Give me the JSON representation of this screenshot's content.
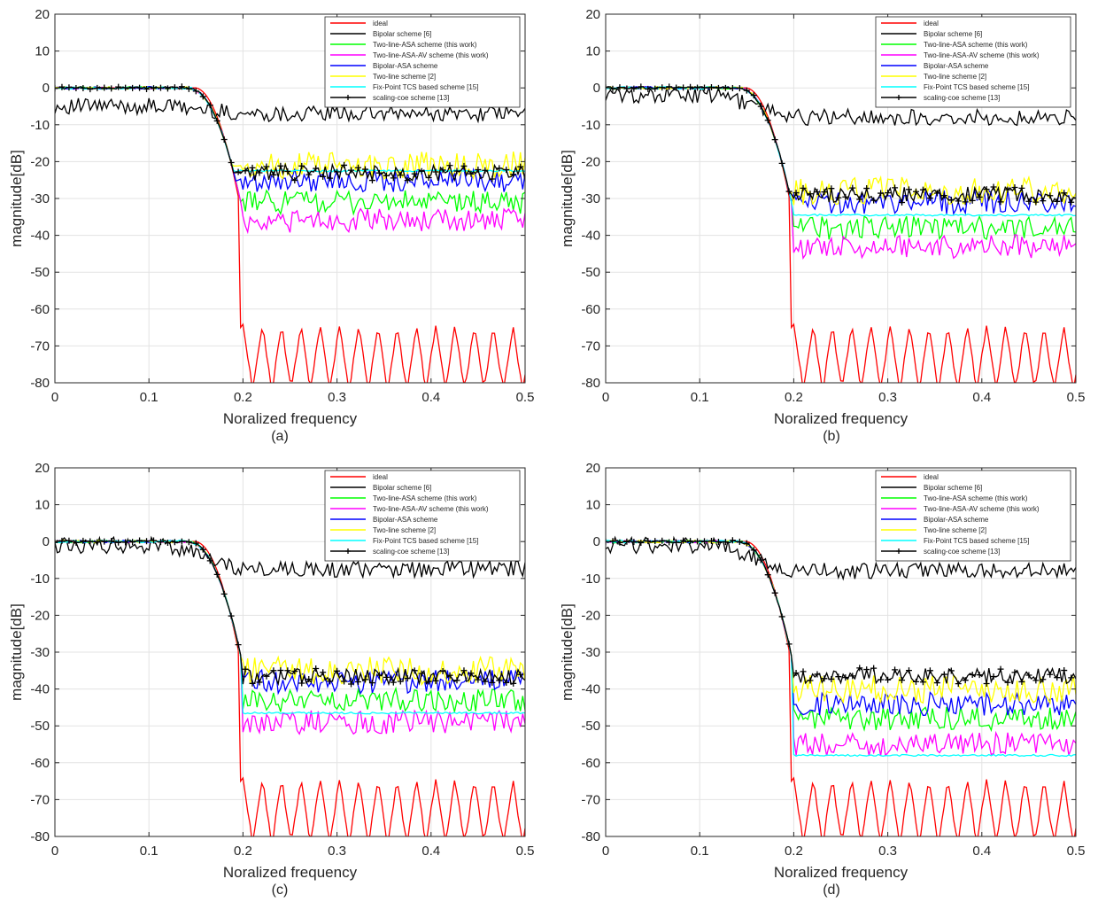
{
  "figure": {
    "captions": [
      "(a)",
      "(b)",
      "(c)",
      "(d)"
    ],
    "xlabel": "Noralized frequency",
    "ylabel": "magnitude[dB]"
  },
  "colors": {
    "ideal": "#ff0000",
    "bipolar": "#000000",
    "two_line_asa": "#00ff00",
    "two_line_asa_av": "#ff00ff",
    "bipolar_asa": "#0000ff",
    "two_line": "#ffff00",
    "fix_point_tcs": "#00ffff",
    "scaling_coe": "#000000"
  },
  "legend_entries": [
    "ideal",
    "Bipolar scheme [6]",
    "Two-line-ASA scheme (this work)",
    "Two-line-ASA-AV scheme (this work)",
    "Bipolar-ASA scheme",
    "Two-line scheme [2]",
    "Fix-Point TCS based scheme [15]",
    "scaling-coe scheme [13]"
  ],
  "chart_data": [
    {
      "type": "line",
      "panel": "(a)",
      "xlabel": "Noralized frequency",
      "ylabel": "magnitude[dB]",
      "xlim": [
        0,
        0.5
      ],
      "ylim": [
        -80,
        20
      ],
      "xticks": [
        "0",
        "0.1",
        "0.2",
        "0.3",
        "0.4",
        "0.5"
      ],
      "yticks": [
        "20",
        "10",
        "0",
        "-10",
        "-20",
        "-30",
        "-40",
        "-50",
        "-60",
        "-70",
        "-80"
      ],
      "grid": true,
      "legend": "top-right",
      "series": [
        {
          "name": "ideal",
          "passband_db": 0,
          "transition_start": 0.15,
          "cutoff": 0.2,
          "stopband_peak_db": -65,
          "stopband_null_db": -80
        },
        {
          "name": "Bipolar scheme [6]",
          "passband_db": -5,
          "stopband_db": -7
        },
        {
          "name": "Two-line-ASA scheme (this work)",
          "passband_db": 0,
          "stopband_db": -31
        },
        {
          "name": "Two-line-ASA-AV scheme (this work)",
          "passband_db": 0,
          "stopband_db": -36
        },
        {
          "name": "Bipolar-ASA scheme",
          "passband_db": 0,
          "stopband_db": -25
        },
        {
          "name": "Two-line scheme [2]",
          "passband_db": 0,
          "stopband_db": -21
        },
        {
          "name": "Fix-Point TCS based scheme [15]",
          "passband_db": 0,
          "stopband_db": -22.5
        },
        {
          "name": "scaling-coe scheme [13]",
          "passband_db": 0,
          "stopband_db": -23
        }
      ]
    },
    {
      "type": "line",
      "panel": "(b)",
      "xlabel": "Noralized frequency",
      "ylabel": "magnitude[dB]",
      "xlim": [
        0,
        0.5
      ],
      "ylim": [
        -80,
        20
      ],
      "xticks": [
        "0",
        "0.1",
        "0.2",
        "0.3",
        "0.4",
        "0.5"
      ],
      "yticks": [
        "20",
        "10",
        "0",
        "-10",
        "-20",
        "-30",
        "-40",
        "-50",
        "-60",
        "-70",
        "-80"
      ],
      "grid": true,
      "legend": "top-right",
      "series": [
        {
          "name": "ideal",
          "passband_db": 0,
          "transition_start": 0.15,
          "cutoff": 0.2,
          "stopband_peak_db": -65,
          "stopband_null_db": -80
        },
        {
          "name": "Bipolar scheme [6]",
          "passband_db": -2,
          "stopband_db": -8
        },
        {
          "name": "Two-line-ASA scheme (this work)",
          "passband_db": 0,
          "stopband_db": -38
        },
        {
          "name": "Two-line-ASA-AV scheme (this work)",
          "passband_db": 0,
          "stopband_db": -43
        },
        {
          "name": "Bipolar-ASA scheme",
          "passband_db": 0,
          "stopband_db": -31
        },
        {
          "name": "Two-line scheme [2]",
          "passband_db": 0,
          "stopband_db": -28
        },
        {
          "name": "Fix-Point TCS based scheme [15]",
          "passband_db": 0,
          "stopband_db": -34.5
        },
        {
          "name": "scaling-coe scheme [13]",
          "passband_db": 0,
          "stopband_db": -29
        }
      ]
    },
    {
      "type": "line",
      "panel": "(c)",
      "xlabel": "Noralized frequency",
      "ylabel": "magnitude[dB]",
      "xlim": [
        0,
        0.5
      ],
      "ylim": [
        -80,
        20
      ],
      "xticks": [
        "0",
        "0.1",
        "0.2",
        "0.3",
        "0.4",
        "0.5"
      ],
      "yticks": [
        "20",
        "10",
        "0",
        "-10",
        "-20",
        "-30",
        "-40",
        "-50",
        "-60",
        "-70",
        "-80"
      ],
      "grid": true,
      "legend": "top-right",
      "series": [
        {
          "name": "ideal",
          "passband_db": 0,
          "transition_start": 0.15,
          "cutoff": 0.2,
          "stopband_peak_db": -65,
          "stopband_null_db": -80
        },
        {
          "name": "Bipolar scheme [6]",
          "passband_db": -1,
          "stopband_db": -7.5
        },
        {
          "name": "Two-line-ASA scheme (this work)",
          "passband_db": 0,
          "stopband_db": -43
        },
        {
          "name": "Two-line-ASA-AV scheme (this work)",
          "passband_db": 0,
          "stopband_db": -49
        },
        {
          "name": "Bipolar-ASA scheme",
          "passband_db": 0,
          "stopband_db": -38
        },
        {
          "name": "Two-line scheme [2]",
          "passband_db": 0,
          "stopband_db": -35
        },
        {
          "name": "Fix-Point TCS based scheme [15]",
          "passband_db": 0,
          "stopband_db": -46.5
        },
        {
          "name": "scaling-coe scheme [13]",
          "passband_db": 0,
          "stopband_db": -36.5
        }
      ]
    },
    {
      "type": "line",
      "panel": "(d)",
      "xlabel": "Noralized frequency",
      "ylabel": "magnitude[dB]",
      "xlim": [
        0,
        0.5
      ],
      "ylim": [
        -80,
        20
      ],
      "xticks": [
        "0",
        "0.1",
        "0.2",
        "0.3",
        "0.4",
        "0.5"
      ],
      "yticks": [
        "20",
        "10",
        "0",
        "-10",
        "-20",
        "-30",
        "-40",
        "-50",
        "-60",
        "-70",
        "-80"
      ],
      "grid": true,
      "legend": "top-right",
      "series": [
        {
          "name": "ideal",
          "passband_db": 0,
          "transition_start": 0.15,
          "cutoff": 0.2,
          "stopband_peak_db": -65,
          "stopband_null_db": -80
        },
        {
          "name": "Bipolar scheme [6]",
          "passband_db": -1,
          "stopband_db": -8
        },
        {
          "name": "Two-line-ASA scheme (this work)",
          "passband_db": 0,
          "stopband_db": -48
        },
        {
          "name": "Two-line-ASA-AV scheme (this work)",
          "passband_db": 0,
          "stopband_db": -55
        },
        {
          "name": "Bipolar-ASA scheme",
          "passband_db": 0,
          "stopband_db": -44
        },
        {
          "name": "Two-line scheme [2]",
          "passband_db": 0,
          "stopband_db": -40
        },
        {
          "name": "Fix-Point TCS based scheme [15]",
          "passband_db": 0,
          "stopband_db": -58
        },
        {
          "name": "scaling-coe scheme [13]",
          "passband_db": 0,
          "stopband_db": -36.5
        }
      ]
    }
  ]
}
